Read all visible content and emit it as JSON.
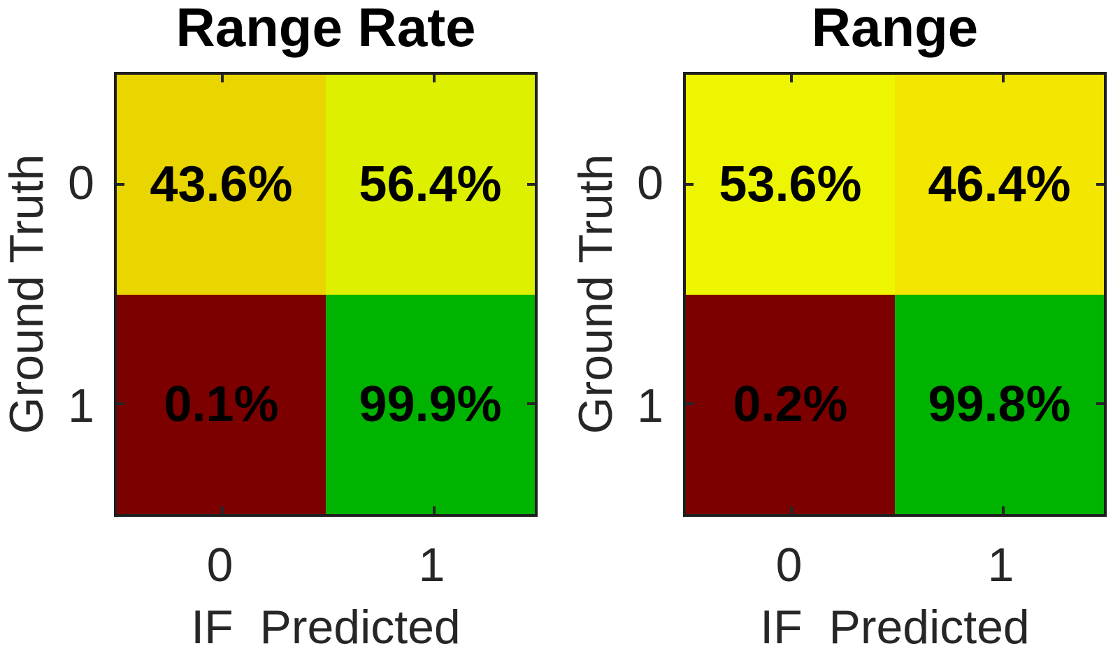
{
  "figure": {
    "panels": [
      {
        "title": "Range Rate",
        "xlabel": "IF  Predicted",
        "ylabel": "Ground Truth",
        "xtick_labels": [
          "0",
          "1"
        ],
        "ytick_labels": [
          "0",
          "1"
        ],
        "cells": [
          {
            "row": "0",
            "col": "0",
            "label": "43.6%",
            "color": "#e9d600"
          },
          {
            "row": "0",
            "col": "1",
            "label": "56.4%",
            "color": "#dcf000"
          },
          {
            "row": "1",
            "col": "0",
            "label": "0.1%",
            "color": "#7d0000"
          },
          {
            "row": "1",
            "col": "1",
            "label": "99.9%",
            "color": "#00b300"
          }
        ]
      },
      {
        "title": "Range",
        "xlabel": "IF  Predicted",
        "ylabel": "Ground Truth",
        "xtick_labels": [
          "0",
          "1"
        ],
        "ytick_labels": [
          "0",
          "1"
        ],
        "cells": [
          {
            "row": "0",
            "col": "0",
            "label": "53.6%",
            "color": "#edf600"
          },
          {
            "row": "0",
            "col": "1",
            "label": "46.4%",
            "color": "#f3e600"
          },
          {
            "row": "1",
            "col": "0",
            "label": "0.2%",
            "color": "#7d0000"
          },
          {
            "row": "1",
            "col": "1",
            "label": "99.8%",
            "color": "#00b300"
          }
        ]
      }
    ],
    "colors": {
      "axis_text": "#262626",
      "cell_text": "#000000",
      "box_border": "#1f1f1f",
      "background": "#ffffff"
    }
  },
  "chart_data": [
    {
      "type": "heatmap",
      "title": "Range Rate",
      "xlabel": "IF  Predicted",
      "ylabel": "Ground Truth",
      "x_categories": [
        "0",
        "1"
      ],
      "y_categories": [
        "0",
        "1"
      ],
      "values_percent": [
        [
          43.6,
          56.4
        ],
        [
          0.1,
          99.9
        ]
      ],
      "cell_labels": [
        [
          "43.6%",
          "56.4%"
        ],
        [
          "0.1%",
          "99.9%"
        ]
      ],
      "cell_colors": [
        [
          "#e9d600",
          "#dcf000"
        ],
        [
          "#7d0000",
          "#00b300"
        ]
      ],
      "colormap": "red-yellow-green",
      "grid": false,
      "legend": false
    },
    {
      "type": "heatmap",
      "title": "Range",
      "xlabel": "IF  Predicted",
      "ylabel": "Ground Truth",
      "x_categories": [
        "0",
        "1"
      ],
      "y_categories": [
        "0",
        "1"
      ],
      "values_percent": [
        [
          53.6,
          46.4
        ],
        [
          0.2,
          99.8
        ]
      ],
      "cell_labels": [
        [
          "53.6%",
          "46.4%"
        ],
        [
          "0.2%",
          "99.8%"
        ]
      ],
      "cell_colors": [
        [
          "#edf600",
          "#f3e600"
        ],
        [
          "#7d0000",
          "#00b300"
        ]
      ],
      "colormap": "red-yellow-green",
      "grid": false,
      "legend": false
    }
  ]
}
